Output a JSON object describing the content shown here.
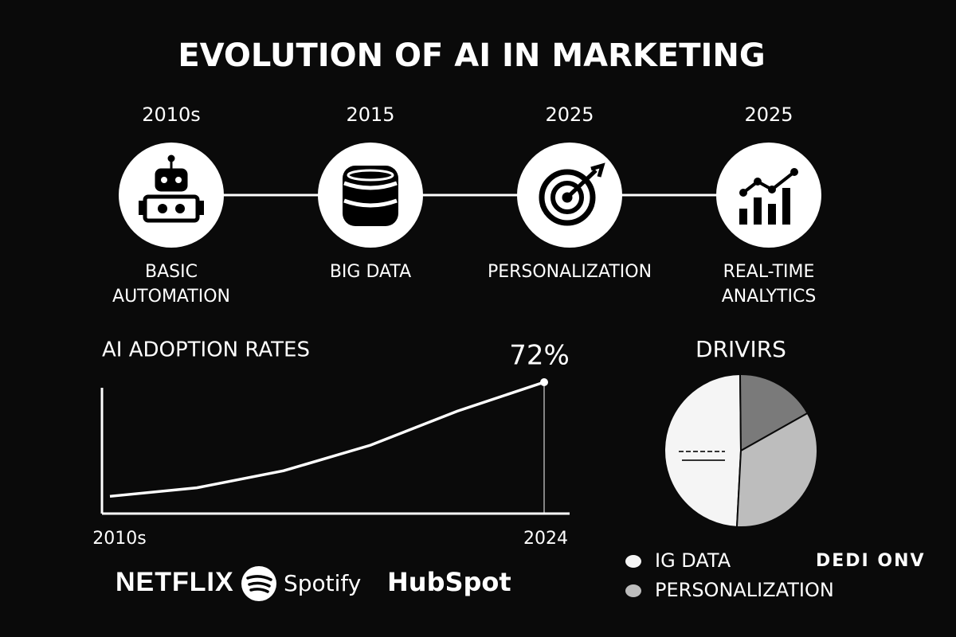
{
  "title": "EVOLUTION OF AI IN MARKETING",
  "timeline": [
    {
      "year": "2010s",
      "label": [
        "BASIC",
        "AUTOMATION"
      ]
    },
    {
      "year": "2015",
      "label": [
        "BIG DATA"
      ]
    },
    {
      "year": "2025",
      "label": [
        "PERSONALIZATION"
      ]
    },
    {
      "year": "2025",
      "label": [
        "REAL-TIME",
        "ANALYTICS"
      ]
    }
  ],
  "brands": [
    "NETFLIX",
    "Spotify",
    "HubSpot"
  ],
  "chart_data": [
    {
      "type": "line",
      "title": "AI ADOPTION RATES",
      "categories": [
        "2010s",
        null,
        null,
        null,
        null,
        "2024"
      ],
      "values": [
        5,
        10,
        20,
        35,
        55,
        72
      ],
      "value_labels": [
        null,
        null,
        null,
        null,
        null,
        "72%"
      ],
      "color": "#ffffff",
      "ylim": [
        0,
        72
      ]
    },
    {
      "type": "pie",
      "title": "DRIVIRS",
      "categories": [
        "IG DATA",
        null,
        "PERSONALIZATION"
      ],
      "values": [
        49,
        17,
        34
      ],
      "colors": [
        "#f5f5f5",
        "#7a7a7a",
        "#bdbdbd"
      ],
      "annotation": "DEDI ONV"
    }
  ]
}
